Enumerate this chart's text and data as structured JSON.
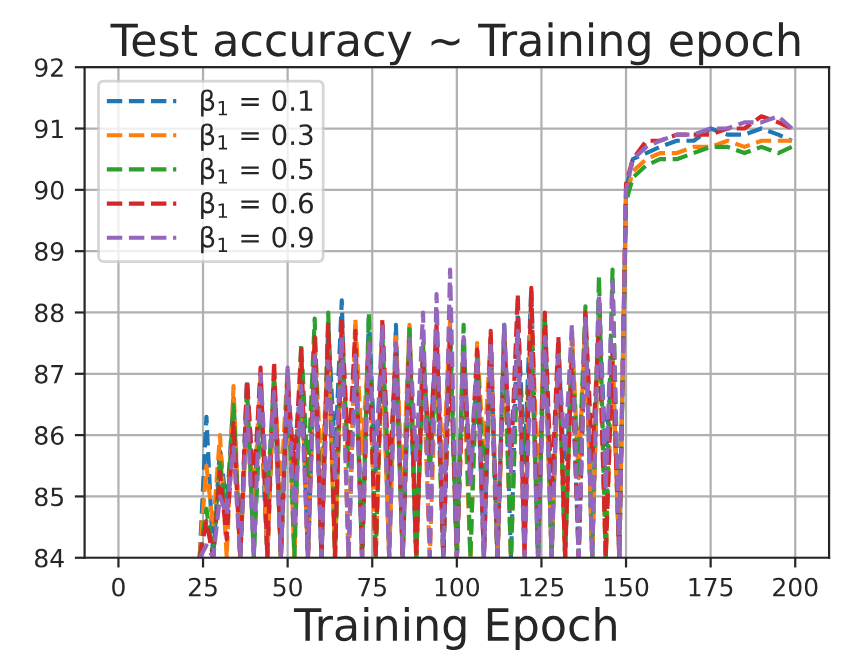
{
  "chart_data": {
    "type": "line",
    "title": "Test accuracy ~ Training epoch",
    "xlabel": "Training Epoch",
    "x": [
      24,
      26,
      28,
      30,
      32,
      34,
      36,
      38,
      40,
      42,
      44,
      46,
      48,
      50,
      52,
      54,
      56,
      58,
      60,
      62,
      64,
      66,
      68,
      70,
      72,
      74,
      76,
      78,
      80,
      82,
      84,
      86,
      88,
      90,
      92,
      94,
      96,
      98,
      100,
      102,
      104,
      106,
      108,
      110,
      112,
      114,
      116,
      118,
      120,
      122,
      124,
      126,
      128,
      130,
      132,
      134,
      136,
      138,
      140,
      142,
      144,
      146,
      148,
      150,
      152,
      156,
      160,
      165,
      170,
      175,
      180,
      185,
      190,
      195,
      199
    ],
    "series": [
      {
        "name": "β$_{1}$ = 0.1",
        "color": "#1f77b4",
        "values": [
          84,
          86.3,
          84,
          85.8,
          84.8,
          86.6,
          84,
          86.9,
          85.0,
          86.5,
          84,
          87.0,
          84,
          86.8,
          85.2,
          87.2,
          84,
          87.4,
          84,
          87.8,
          85.6,
          88.2,
          84,
          87.5,
          84,
          87.9,
          85.4,
          87.6,
          84,
          87.8,
          84,
          87.2,
          84,
          87.0,
          85.8,
          87.6,
          84,
          87.8,
          84,
          87.4,
          85.2,
          87.1,
          84,
          87.6,
          84,
          87.8,
          84,
          88.0,
          85.5,
          88.4,
          84,
          87.9,
          84,
          87.5,
          85.0,
          87.2,
          84,
          87.8,
          84,
          88.2,
          85.6,
          87.3,
          84,
          90.0,
          90.5,
          90.6,
          90.7,
          90.8,
          90.8,
          91.0,
          90.9,
          90.9,
          91.0,
          90.9,
          90.8
        ]
      },
      {
        "name": "β$_{1}$ = 0.3",
        "color": "#ff7f0e",
        "values": [
          84,
          85.5,
          84.5,
          86.0,
          84,
          86.8,
          84,
          86.4,
          84.9,
          87.0,
          84,
          86.9,
          85.1,
          87.1,
          84,
          87.3,
          84,
          87.6,
          85.3,
          87.4,
          84,
          87.7,
          84,
          87.9,
          85.7,
          87.5,
          84,
          87.3,
          84,
          87.6,
          85.0,
          87.8,
          84,
          87.2,
          84,
          87.4,
          85.4,
          87.9,
          84,
          87.0,
          84,
          87.5,
          85.6,
          87.6,
          84,
          87.3,
          84,
          87.7,
          84,
          88.1,
          85.2,
          87.6,
          84,
          87.4,
          84,
          87.7,
          85.3,
          87.9,
          84,
          88.0,
          84,
          87.2,
          84,
          89.9,
          90.3,
          90.5,
          90.6,
          90.6,
          90.7,
          90.7,
          90.8,
          90.7,
          90.8,
          90.8,
          90.8
        ]
      },
      {
        "name": "β$_{1}$ = 0.5",
        "color": "#2ca02c",
        "values": [
          84,
          84.8,
          84,
          85.6,
          84.6,
          86.5,
          84,
          86.8,
          84,
          86.4,
          85.0,
          86.9,
          84,
          87.0,
          84,
          87.5,
          85.3,
          87.9,
          84,
          88.0,
          84,
          87.6,
          85.5,
          87.4,
          84,
          88.0,
          84,
          87.6,
          85.1,
          87.3,
          84,
          87.8,
          84,
          87.5,
          85.4,
          87.2,
          84,
          87.6,
          84,
          87.8,
          84,
          87.3,
          85.2,
          87.0,
          84,
          87.7,
          84,
          87.4,
          85.6,
          87.6,
          84,
          88.0,
          84,
          87.5,
          84,
          87.4,
          85.3,
          88.1,
          84,
          88.6,
          84,
          88.7,
          84,
          89.8,
          90.2,
          90.4,
          90.5,
          90.5,
          90.6,
          90.7,
          90.7,
          90.6,
          90.7,
          90.6,
          90.7
        ]
      },
      {
        "name": "β$_{1}$ = 0.6",
        "color": "#d62728",
        "values": [
          84,
          84.6,
          84,
          85.4,
          84.3,
          86.2,
          84,
          86.9,
          85.1,
          87.1,
          84,
          87.2,
          84,
          86.9,
          85.4,
          87.4,
          84,
          87.6,
          84,
          87.8,
          84,
          87.9,
          85.6,
          87.7,
          84,
          87.5,
          84,
          87.9,
          85.2,
          87.4,
          84,
          87.6,
          84,
          87.3,
          85.7,
          87.8,
          84,
          87.5,
          84,
          87.2,
          85.3,
          87.4,
          84,
          87.7,
          84,
          87.6,
          85.5,
          88.3,
          84,
          88.4,
          84,
          88.0,
          85.0,
          87.6,
          84,
          87.3,
          84,
          88.0,
          85.6,
          87.8,
          84,
          87.4,
          84,
          90.1,
          90.5,
          90.8,
          90.8,
          90.9,
          90.9,
          90.9,
          91.0,
          91.0,
          91.2,
          91.1,
          91.0
        ]
      },
      {
        "name": "β$_{1}$ = 0.9",
        "color": "#9467bd",
        "values": [
          84,
          84.2,
          84,
          85.0,
          84.7,
          85.8,
          84,
          86.5,
          84,
          87.0,
          85.0,
          86.7,
          84,
          87.1,
          84.5,
          86.8,
          84,
          87.3,
          84,
          87.2,
          85.3,
          87.6,
          84,
          87.3,
          84,
          87.5,
          85.5,
          87.8,
          84,
          87.5,
          84,
          87.6,
          85.6,
          88.0,
          84,
          88.3,
          84,
          88.7,
          84,
          87.6,
          85.2,
          87.3,
          84,
          87.5,
          84,
          87.8,
          85.4,
          87.7,
          84,
          87.4,
          84,
          87.6,
          84,
          87.3,
          85.7,
          87.8,
          84,
          87.9,
          84,
          88.3,
          85.1,
          88.5,
          84,
          90.0,
          90.5,
          90.7,
          90.8,
          90.9,
          90.9,
          91.0,
          91.0,
          91.1,
          91.1,
          91.2,
          91.0
        ]
      }
    ],
    "xlim": [
      -10,
      210
    ],
    "xticks": [
      0,
      25,
      50,
      75,
      100,
      125,
      150,
      175,
      200
    ],
    "ylim": [
      84,
      92
    ],
    "yticks": [
      84,
      85,
      86,
      87,
      88,
      89,
      90,
      91,
      92
    ],
    "grid": true,
    "legend": "top left",
    "line_style": "dashed",
    "marker": "none"
  }
}
